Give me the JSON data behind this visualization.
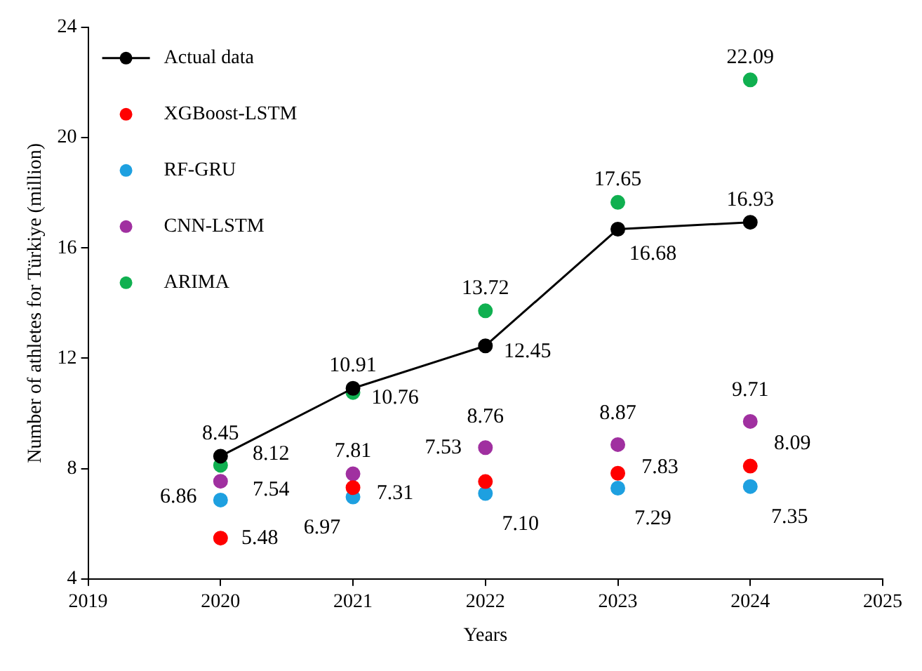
{
  "chart_data": {
    "type": "scatter",
    "xlabel": "Years",
    "ylabel": "Number of athletes for Türkiye (million)",
    "x": [
      2020,
      2021,
      2022,
      2023,
      2024
    ],
    "series": [
      {
        "name": "Actual data",
        "type": "line",
        "color": "#000000",
        "values": [
          8.45,
          10.91,
          12.45,
          16.68,
          16.93
        ],
        "value_labels": [
          "8.45",
          "10.91",
          "12.45",
          "16.68",
          "16.93"
        ]
      },
      {
        "name": "XGBoost-LSTM",
        "color": "#ff0000",
        "values": [
          5.48,
          7.31,
          7.53,
          7.83,
          8.09
        ],
        "value_labels": [
          "5.48",
          "7.31",
          "7.53",
          "7.83",
          "8.09"
        ]
      },
      {
        "name": "RF-GRU",
        "color": "#1ea0e0",
        "values": [
          6.86,
          6.97,
          7.1,
          7.29,
          7.35
        ],
        "value_labels": [
          "6.86",
          "6.97",
          "7.10",
          "7.29",
          "7.35"
        ]
      },
      {
        "name": "CNN-LSTM",
        "color": "#a030a0",
        "values": [
          7.54,
          7.81,
          8.76,
          8.87,
          9.71
        ],
        "value_labels": [
          "7.54",
          "7.81",
          "8.76",
          "8.87",
          "9.71"
        ]
      },
      {
        "name": "ARIMA",
        "color": "#10b050",
        "values": [
          8.12,
          10.76,
          13.72,
          17.65,
          22.09
        ],
        "value_labels": [
          "8.12",
          "10.76",
          "13.72",
          "17.65",
          "22.09"
        ]
      }
    ],
    "xlim": [
      2019,
      2025
    ],
    "xticks": [
      2019,
      2020,
      2021,
      2022,
      2023,
      2024,
      2025
    ],
    "ylim": [
      4,
      24
    ],
    "yticks": [
      4,
      8,
      12,
      16,
      20,
      24
    ],
    "grid": false,
    "legend": "top left",
    "marker": "circle",
    "line_style": "solid"
  }
}
